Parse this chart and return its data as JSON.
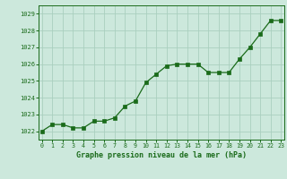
{
  "x": [
    0,
    1,
    2,
    3,
    4,
    5,
    6,
    7,
    8,
    9,
    10,
    11,
    12,
    13,
    14,
    15,
    16,
    17,
    18,
    19,
    20,
    21,
    22,
    23
  ],
  "y": [
    1022.0,
    1022.4,
    1022.4,
    1022.2,
    1022.2,
    1022.6,
    1022.6,
    1022.8,
    1023.5,
    1023.8,
    1024.9,
    1025.4,
    1025.9,
    1026.0,
    1026.0,
    1026.0,
    1025.5,
    1025.5,
    1025.5,
    1026.3,
    1027.0,
    1027.8,
    1028.6,
    1028.6
  ],
  "line_color": "#1a6b1a",
  "marker_color": "#1a6b1a",
  "bg_color": "#cce8dc",
  "grid_color": "#aacfbf",
  "xlabel": "Graphe pression niveau de la mer (hPa)",
  "xlabel_color": "#1a6b1a",
  "tick_color": "#1a6b1a",
  "ylim": [
    1021.5,
    1029.5
  ],
  "yticks": [
    1022,
    1023,
    1024,
    1025,
    1026,
    1027,
    1028,
    1029
  ],
  "xticks": [
    0,
    1,
    2,
    3,
    4,
    5,
    6,
    7,
    8,
    9,
    10,
    11,
    12,
    13,
    14,
    15,
    16,
    17,
    18,
    19,
    20,
    21,
    22,
    23
  ],
  "xlim": [
    -0.3,
    23.3
  ]
}
